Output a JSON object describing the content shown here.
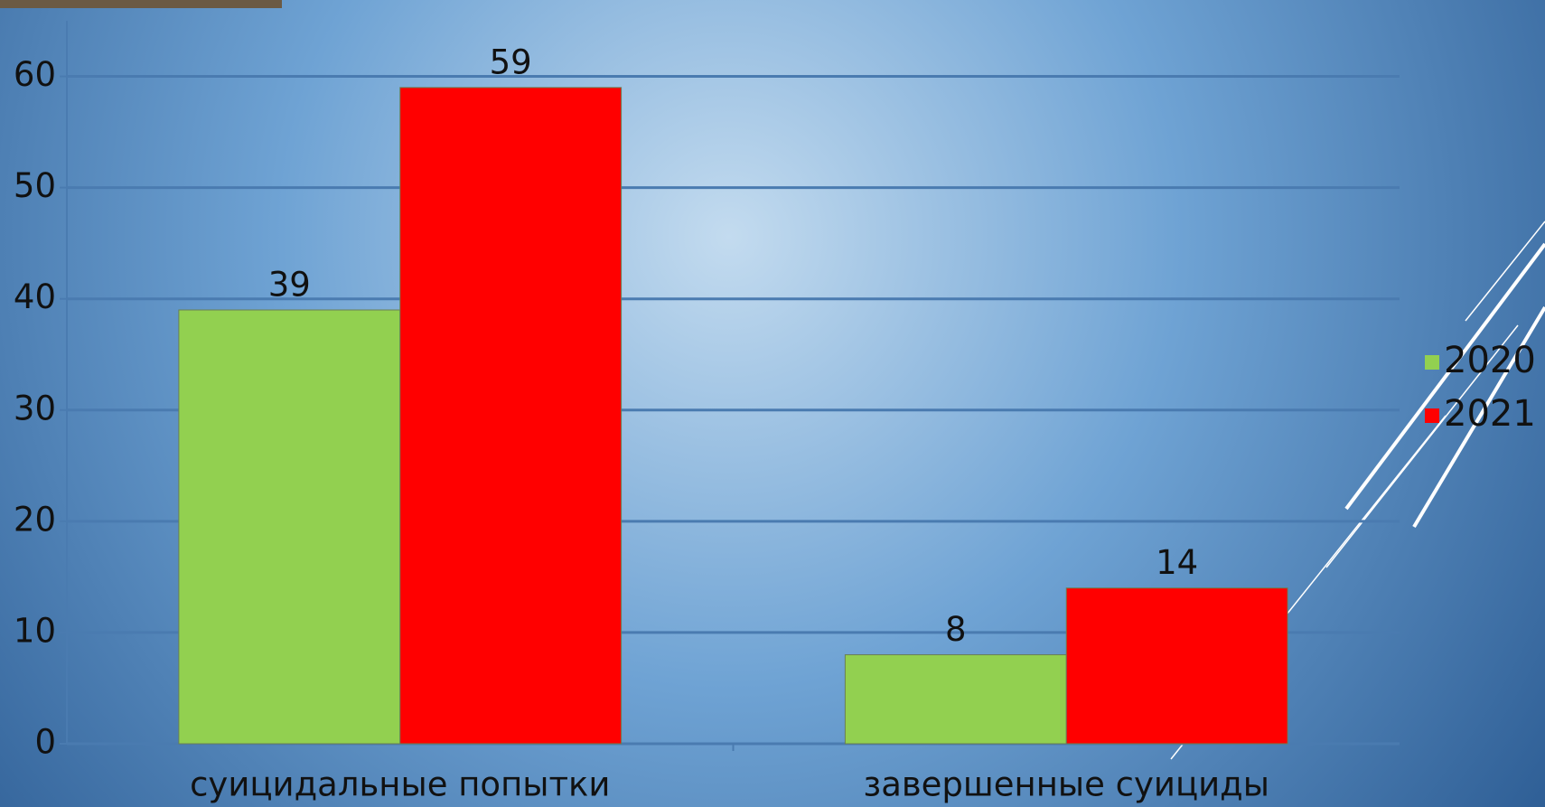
{
  "chart_data": {
    "type": "bar",
    "categories": [
      "суицидальные попытки",
      "завершенные суициды"
    ],
    "series": [
      {
        "name": "2020",
        "color": "#92d050",
        "values": [
          39,
          8
        ]
      },
      {
        "name": "2021",
        "color": "#ff0000",
        "values": [
          59,
          14
        ]
      }
    ],
    "ylim": [
      0,
      65
    ],
    "yticks": [
      0,
      10,
      20,
      30,
      40,
      50,
      60
    ],
    "grid": true,
    "legend": "right"
  }
}
